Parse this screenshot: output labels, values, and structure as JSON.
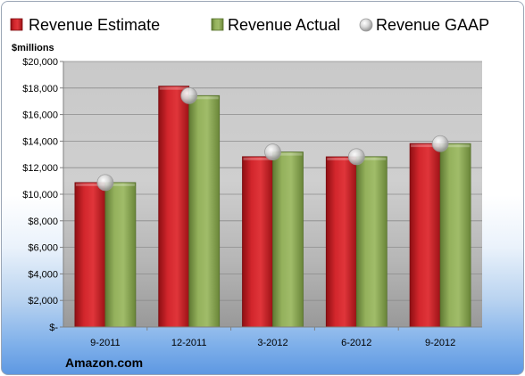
{
  "chart_data": {
    "type": "bar",
    "unit_label": "$millions",
    "categories": [
      "9-2011",
      "12-2011",
      "3-2012",
      "6-2012",
      "9-2012"
    ],
    "series": [
      {
        "name": "Revenue Estimate",
        "kind": "bar",
        "color": "#c41e24",
        "values": [
          10880,
          18140,
          12830,
          12820,
          13820
        ]
      },
      {
        "name": "Revenue Actual",
        "kind": "bar",
        "color": "#8aa654",
        "values": [
          10880,
          17430,
          13180,
          12830,
          13810
        ]
      },
      {
        "name": "Revenue GAAP",
        "kind": "marker",
        "color": "#c8c8c8",
        "values": [
          10880,
          17430,
          13180,
          12830,
          13810
        ]
      }
    ],
    "ylim": [
      0,
      20000
    ],
    "y_ticks": [
      "$-",
      "$2,000",
      "$4,000",
      "$6,000",
      "$8,000",
      "$10,000",
      "$12,000",
      "$14,000",
      "$16,000",
      "$18,000",
      "$20,000"
    ],
    "legend_position": "top",
    "grid": true
  },
  "footer": {
    "source": "Amazon.com"
  }
}
